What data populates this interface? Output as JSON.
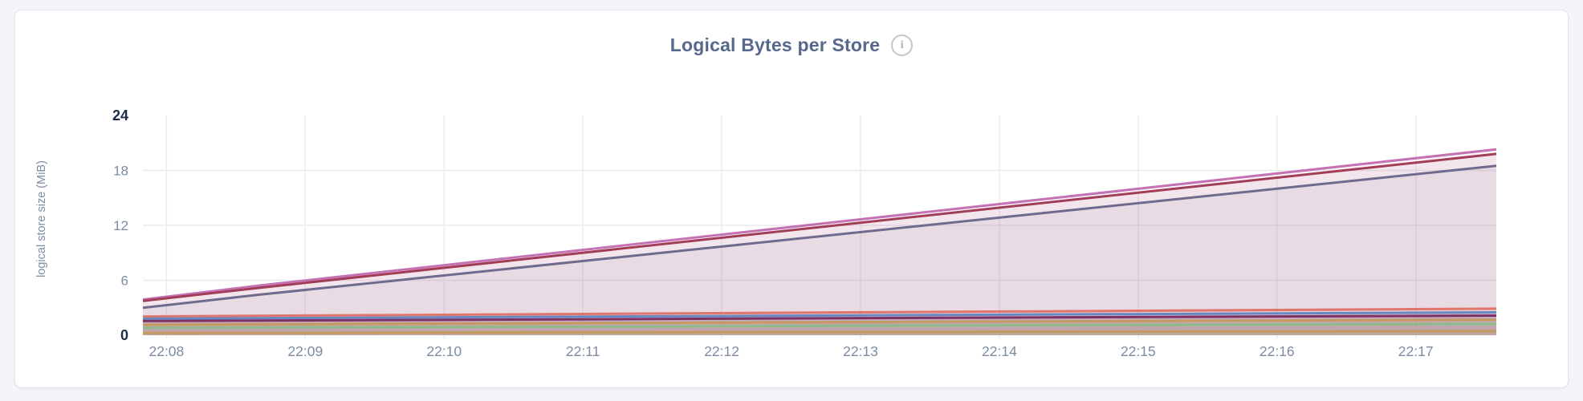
{
  "page": {
    "background": "#f3f5f9"
  },
  "card": {
    "title": "Logical Bytes per Store",
    "info_icon_glyph": "i"
  },
  "chart_data": {
    "type": "area",
    "title": "Logical Bytes per Store",
    "xlabel": "",
    "ylabel": "logical store size (MiB)",
    "ylim": [
      0,
      24
    ],
    "y_ticks": [
      0,
      6,
      12,
      18,
      24
    ],
    "y_ticks_emphasized": [
      0,
      24
    ],
    "x_tick_labels": [
      "22:08",
      "22:09",
      "22:10",
      "22:11",
      "22:12",
      "22:13",
      "22:14",
      "22:15",
      "22:16",
      "22:17"
    ],
    "x_tick_minutes": [
      0,
      1,
      2,
      3,
      4,
      5,
      6,
      7,
      8,
      9
    ],
    "xlim_minutes": [
      -0.17,
      9.58
    ],
    "grid": true,
    "legend_position": "none",
    "series": [
      {
        "id": "series-1",
        "color": "#c572b4",
        "x_minutes": [
          -0.17,
          0.65,
          9.58
        ],
        "values_mib": [
          3.9,
          5.4,
          20.3
        ]
      },
      {
        "id": "series-2",
        "color": "#a23d57",
        "x_minutes": [
          -0.17,
          0.65,
          9.58
        ],
        "values_mib": [
          3.75,
          5.15,
          19.8
        ]
      },
      {
        "id": "series-3",
        "color": "#6f6b8e",
        "x_minutes": [
          -0.17,
          0.65,
          9.58
        ],
        "values_mib": [
          3.0,
          4.4,
          18.5
        ]
      },
      {
        "id": "series-4",
        "color": "#e0756b",
        "x_minutes": [
          -0.17,
          9.58
        ],
        "values_mib": [
          2.05,
          2.9
        ]
      },
      {
        "id": "series-5",
        "color": "#6788c3",
        "x_minutes": [
          -0.17,
          9.58
        ],
        "values_mib": [
          1.8,
          2.5
        ]
      },
      {
        "id": "series-6",
        "color": "#7e3163",
        "x_minutes": [
          -0.17,
          9.58
        ],
        "values_mib": [
          1.55,
          2.15
        ]
      },
      {
        "id": "series-7",
        "color": "#c49a5f",
        "x_minutes": [
          -0.17,
          9.58
        ],
        "values_mib": [
          1.15,
          1.7
        ]
      },
      {
        "id": "series-8",
        "color": "#8eba8b",
        "x_minutes": [
          -0.17,
          9.58
        ],
        "values_mib": [
          0.8,
          1.25
        ]
      },
      {
        "id": "series-9",
        "color": "#c3a3ae",
        "x_minutes": [
          -0.17,
          9.58
        ],
        "values_mib": [
          0.5,
          0.8
        ]
      },
      {
        "id": "series-10",
        "color": "#c49a5f",
        "x_minutes": [
          -0.17,
          9.58
        ],
        "values_mib": [
          0.25,
          0.45
        ]
      }
    ]
  }
}
